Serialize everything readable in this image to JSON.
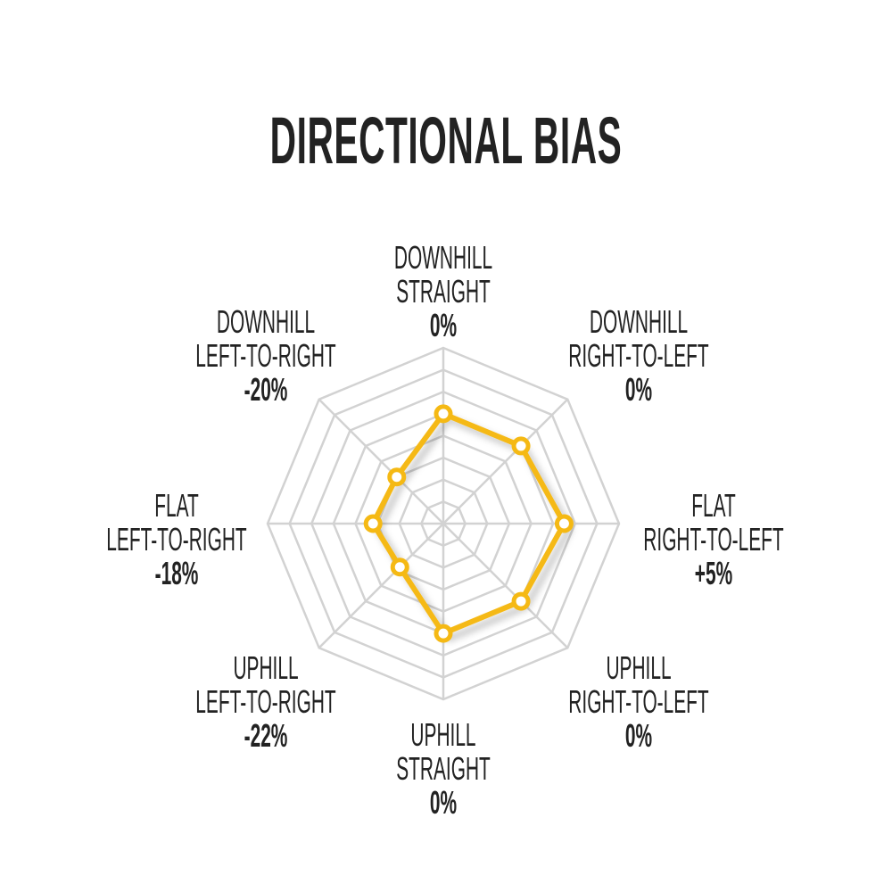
{
  "chart_data": {
    "type": "radar",
    "title": "DIRECTIONAL BIAS",
    "axes": [
      {
        "name": [
          "DOWNHILL",
          "STRAIGHT"
        ],
        "label": "0%",
        "value": 0
      },
      {
        "name": [
          "DOWNHILL",
          "RIGHT-TO-LEFT"
        ],
        "label": "0%",
        "value": 0
      },
      {
        "name": [
          "FLAT",
          "RIGHT-TO-LEFT"
        ],
        "label": "+5%",
        "value": 5
      },
      {
        "name": [
          "UPHILL",
          "RIGHT-TO-LEFT"
        ],
        "label": "0%",
        "value": 0
      },
      {
        "name": [
          "UPHILL",
          "STRAIGHT"
        ],
        "label": "0%",
        "value": 0
      },
      {
        "name": [
          "UPHILL",
          "LEFT-TO-RIGHT"
        ],
        "label": "-22%",
        "value": -22
      },
      {
        "name": [
          "FLAT",
          "LEFT-TO-RIGHT"
        ],
        "label": "-18%",
        "value": -18
      },
      {
        "name": [
          "DOWNHILL",
          "LEFT-TO-RIGHT"
        ],
        "label": "-20%",
        "value": -20
      }
    ],
    "range": [
      -50,
      30
    ],
    "rings": 8,
    "grid": true,
    "colors": {
      "series": "#F5B914",
      "grid": "#D2D2D2",
      "text": "#222222"
    }
  }
}
